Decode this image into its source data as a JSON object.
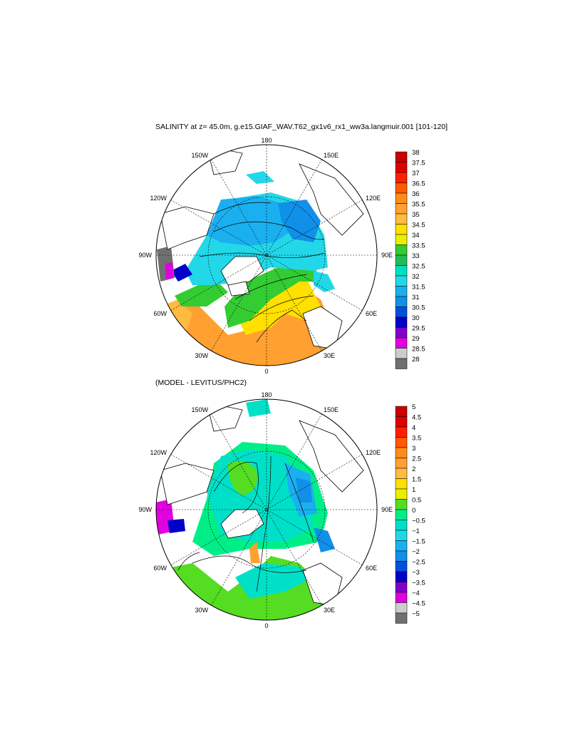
{
  "figure": {
    "title_top": "SALINITY at z=  45.0m, g.e15.GIAF_WAV.T62_gx1v6_rx1_ww3a.langmuir.001 [101-120]",
    "title_bottom": "(MODEL - LEVITUS/PHC2)"
  },
  "longitude_labels": {
    "top": "180",
    "bottom": "0",
    "left": "90W",
    "right": "90E",
    "upper_left_1": "150W",
    "upper_right_1": "150E",
    "upper_left_2": "120W",
    "upper_right_2": "120E",
    "lower_left_2": "60W",
    "lower_right_2": "60E",
    "lower_left_1": "30W",
    "lower_right_1": "30E"
  },
  "map_top": {
    "name": "Salinity",
    "colorbar_levels": [
      "38",
      "37.5",
      "37",
      "36.5",
      "36",
      "35.5",
      "35",
      "34.5",
      "34",
      "33.5",
      "33",
      "32.5",
      "32",
      "31.5",
      "31",
      "30.5",
      "30",
      "29.5",
      "29",
      "28.5",
      "28"
    ],
    "colorbar_colors": [
      "#c80000",
      "#e00000",
      "#ff2000",
      "#ff5a00",
      "#ff8c1a",
      "#ffa030",
      "#ffba40",
      "#ffe000",
      "#e8f000",
      "#33cc33",
      "#22bb55",
      "#00e0c0",
      "#22d8e8",
      "#1ab0f0",
      "#1090e8",
      "#0050e0",
      "#0000c8",
      "#8000c8",
      "#e000e0",
      "#cccccc",
      "#707070"
    ]
  },
  "map_bottom": {
    "name": "Model minus Levitus/PHC2 difference",
    "colorbar_levels": [
      "5",
      "4.5",
      "4",
      "3.5",
      "3",
      "2.5",
      "2",
      "1.5",
      "1",
      "0.5",
      "0",
      "−0.5",
      "−1",
      "−1.5",
      "−2",
      "−2.5",
      "−3",
      "−3.5",
      "−4",
      "−4.5",
      "−5"
    ],
    "colorbar_colors": [
      "#c80000",
      "#e00000",
      "#ff2000",
      "#ff5a00",
      "#ff8c1a",
      "#ffa030",
      "#ffba40",
      "#ffe000",
      "#e8f000",
      "#55dd22",
      "#00ee88",
      "#00e0c8",
      "#22d8e8",
      "#1ab0f0",
      "#1090e8",
      "#0050e0",
      "#0000c8",
      "#8000c8",
      "#e000e0",
      "#cccccc",
      "#707070"
    ]
  }
}
